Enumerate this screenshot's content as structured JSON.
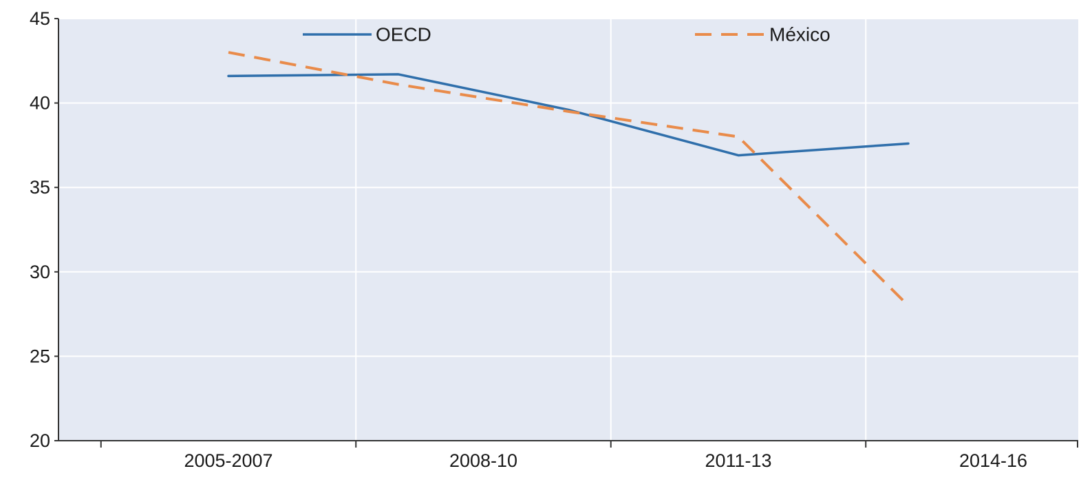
{
  "chart_data": {
    "type": "line",
    "categories": [
      "2005-2007",
      "2008-10",
      "2011-13",
      "2014-16"
    ],
    "x_points": [
      1,
      2,
      3,
      4,
      5
    ],
    "xlim": [
      0,
      6
    ],
    "ylim": [
      20,
      45
    ],
    "yticks": [
      20,
      25,
      30,
      35,
      40,
      45
    ],
    "category_positions": [
      1,
      2.5,
      4,
      5.5
    ],
    "grid": {
      "horizontal": true,
      "vertical": true
    },
    "background_color": "#e4e9f3",
    "legend_position": "top",
    "series": [
      {
        "name": "OECD",
        "style": "solid",
        "color": "#2f6fab",
        "x": [
          1,
          2,
          3,
          4,
          5
        ],
        "values": [
          41.6,
          41.7,
          39.6,
          36.9,
          37.6
        ]
      },
      {
        "name": "México",
        "style": "dashed",
        "color": "#e98b4a",
        "x": [
          1,
          2,
          3,
          4,
          5
        ],
        "values": [
          43.0,
          41.1,
          39.5,
          38.0,
          28.0
        ]
      }
    ]
  }
}
